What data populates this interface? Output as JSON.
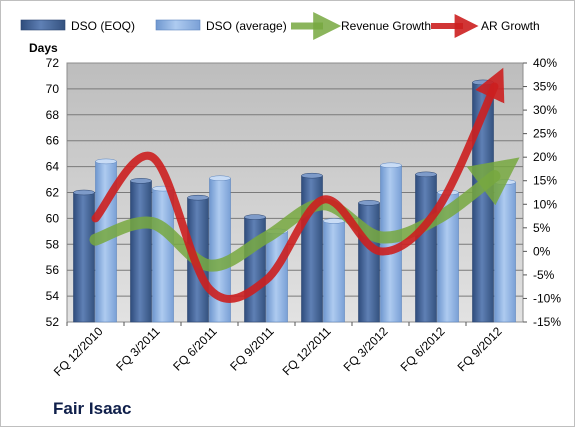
{
  "chart_data": {
    "type": "bar",
    "categories": [
      "FQ 12/2010",
      "FQ 3/2011",
      "FQ 6/2011",
      "FQ 9/2011",
      "FQ 12/2011",
      "FQ 3/2012",
      "FQ 6/2012",
      "FQ 9/2012"
    ],
    "ylabel": "Days",
    "ylim": [
      52,
      72
    ],
    "yticks": [
      52,
      54,
      56,
      58,
      60,
      62,
      64,
      66,
      68,
      70,
      72
    ],
    "y2lim": [
      -15,
      40
    ],
    "y2ticks": [
      "-15%",
      "-10%",
      "-5%",
      "0%",
      "5%",
      "10%",
      "15%",
      "20%",
      "25%",
      "30%",
      "35%",
      "40%"
    ],
    "y2values": [
      -15,
      -10,
      -5,
      0,
      5,
      10,
      15,
      20,
      25,
      30,
      35,
      40
    ],
    "grid": true,
    "legend_position": "top",
    "series": [
      {
        "name": "DSO (EOQ)",
        "kind": "bar",
        "axis": "left",
        "color": "#4f6d9e",
        "values": [
          62.0,
          62.9,
          61.6,
          60.1,
          63.3,
          61.2,
          63.4,
          70.5
        ]
      },
      {
        "name": "DSO (average)",
        "kind": "bar",
        "axis": "left",
        "color": "#8fb4e3",
        "values": [
          64.4,
          62.3,
          63.1,
          59.0,
          59.8,
          64.1,
          62.0,
          62.8
        ]
      },
      {
        "name": "Revenue Growth",
        "kind": "line",
        "axis": "right",
        "color": "#77a83f",
        "values": [
          2.5,
          6,
          -3,
          3,
          10,
          3,
          7,
          16
        ]
      },
      {
        "name": "AR Growth",
        "kind": "line",
        "axis": "right",
        "color": "#cc1f1f",
        "values": [
          7,
          20,
          -8,
          -6,
          11,
          0,
          9,
          35
        ]
      }
    ]
  },
  "footer": {
    "company": "Fair Isaac"
  }
}
